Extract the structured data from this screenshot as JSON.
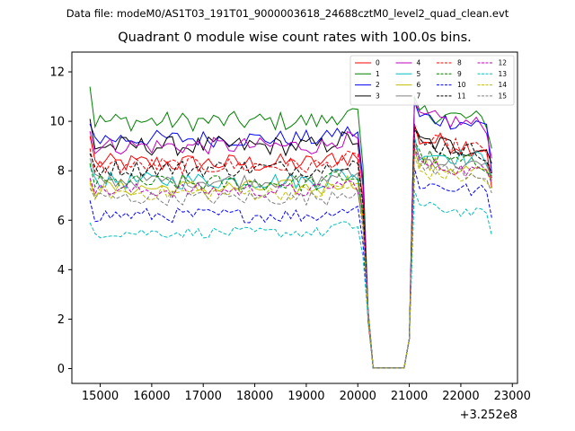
{
  "suptitle": "Data file: modeM0/AS1T03_191T01_9000003618_24688cztM0_level2_quad_clean.evt",
  "chart_data": {
    "type": "line",
    "title": "Quadrant 0 module wise count rates with 100.0s bins.",
    "xlabel": "",
    "ylabel": "",
    "x_offset_label": "+3.252e8",
    "xlim": [
      14450,
      23100
    ],
    "ylim": [
      -0.6,
      12.8
    ],
    "xticks": [
      15000,
      16000,
      17000,
      18000,
      19000,
      20000,
      21000,
      22000,
      23000
    ],
    "yticks": [
      0,
      2,
      4,
      6,
      8,
      10,
      12
    ],
    "grid": false,
    "legend": {
      "placement": "top-right",
      "columns": 4
    },
    "x": {
      "start": 14800,
      "step": 100,
      "count": 79
    },
    "series": [
      {
        "name": "0",
        "color": "#ff0000",
        "dash": "solid",
        "base": 8.3,
        "amp": 0.4,
        "start": 9.4,
        "post": 9.3,
        "end": 7.3
      },
      {
        "name": "1",
        "color": "#008000",
        "dash": "solid",
        "base": 10.0,
        "amp": 0.4,
        "start": 11.4,
        "post": 10.4,
        "end": 8.9
      },
      {
        "name": "2",
        "color": "#0000ff",
        "dash": "solid",
        "base": 9.3,
        "amp": 0.35,
        "start": 9.9,
        "post": 10.2,
        "end": 7.9
      },
      {
        "name": "3",
        "color": "#000000",
        "dash": "solid",
        "base": 9.0,
        "amp": 0.4,
        "start": 10.1,
        "post": 9.2,
        "end": 8.3
      },
      {
        "name": "4",
        "color": "#bf00bf",
        "dash": "solid",
        "base": 9.0,
        "amp": 0.35,
        "start": 9.6,
        "post": 10.2,
        "end": 8.5
      },
      {
        "name": "5",
        "color": "#00bfbf",
        "dash": "solid",
        "base": 7.6,
        "amp": 0.35,
        "start": 8.2,
        "post": 8.8,
        "end": 7.8
      },
      {
        "name": "6",
        "color": "#bfbf00",
        "dash": "solid",
        "base": 7.3,
        "amp": 0.35,
        "start": 7.6,
        "post": 8.3,
        "end": 7.5
      },
      {
        "name": "7",
        "color": "#808080",
        "dash": "solid",
        "base": 7.6,
        "amp": 0.3,
        "start": 8.5,
        "post": 8.5,
        "end": 7.6
      },
      {
        "name": "8",
        "color": "#ff0000",
        "dash": "dashed",
        "base": 8.2,
        "amp": 0.35,
        "start": 8.9,
        "post": 9.2,
        "end": 7.7
      },
      {
        "name": "9",
        "color": "#008000",
        "dash": "dashed",
        "base": 7.5,
        "amp": 0.35,
        "start": 8.3,
        "post": 8.6,
        "end": 7.8
      },
      {
        "name": "10",
        "color": "#0000ff",
        "dash": "dashed",
        "base": 6.2,
        "amp": 0.3,
        "start": 6.8,
        "post": 7.5,
        "end": 6.1
      },
      {
        "name": "11",
        "color": "#000000",
        "dash": "dashed",
        "base": 8.1,
        "amp": 0.35,
        "start": 8.7,
        "post": 9.1,
        "end": 7.9
      },
      {
        "name": "12",
        "color": "#bf00bf",
        "dash": "dashed",
        "base": 7.2,
        "amp": 0.3,
        "start": 7.7,
        "post": 8.3,
        "end": 7.5
      },
      {
        "name": "13",
        "color": "#00bfbf",
        "dash": "dashed",
        "base": 5.5,
        "amp": 0.22,
        "start": 5.9,
        "post": 6.6,
        "end": 5.4
      },
      {
        "name": "14",
        "color": "#bfbf00",
        "dash": "dashed",
        "base": 7.1,
        "amp": 0.3,
        "start": 7.5,
        "post": 8.0,
        "end": 7.3
      },
      {
        "name": "15",
        "color": "#808080",
        "dash": "dashed",
        "base": 6.9,
        "amp": 0.3,
        "start": 7.3,
        "post": 8.2,
        "end": 7.1
      }
    ]
  }
}
